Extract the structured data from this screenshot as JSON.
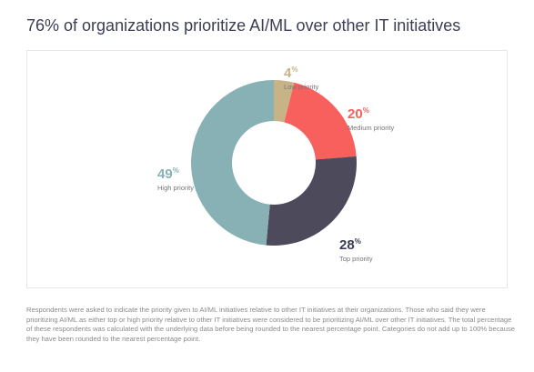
{
  "title": "76% of organizations prioritize AI/ML over other IT initiatives",
  "chart_data": {
    "type": "pie",
    "donut": true,
    "categories": [
      "Low priority",
      "Medium priority",
      "Top priority",
      "High priority"
    ],
    "values": [
      4,
      20,
      28,
      49
    ],
    "value_labels": [
      "4",
      "20",
      "28",
      "49"
    ],
    "unit": "%",
    "colors": [
      "#c8b386",
      "#f7605c",
      "#4d4a5c",
      "#88b1b5"
    ]
  },
  "footnote": "Respondents were asked to indicate the priority given to AI/ML initiatives relative to other IT initiatives at their organizations. Those who said they were prioritizing AI/ML as either top or high priority relative to other IT initiatives were considered to be prioritizing AI/ML over other IT initiatives. The total percentage of these respondents was calculated with the underlying data before being rounded to the nearest percentage point. Categories do not add up to 100% because they have been rounded to the nearest percentage point."
}
